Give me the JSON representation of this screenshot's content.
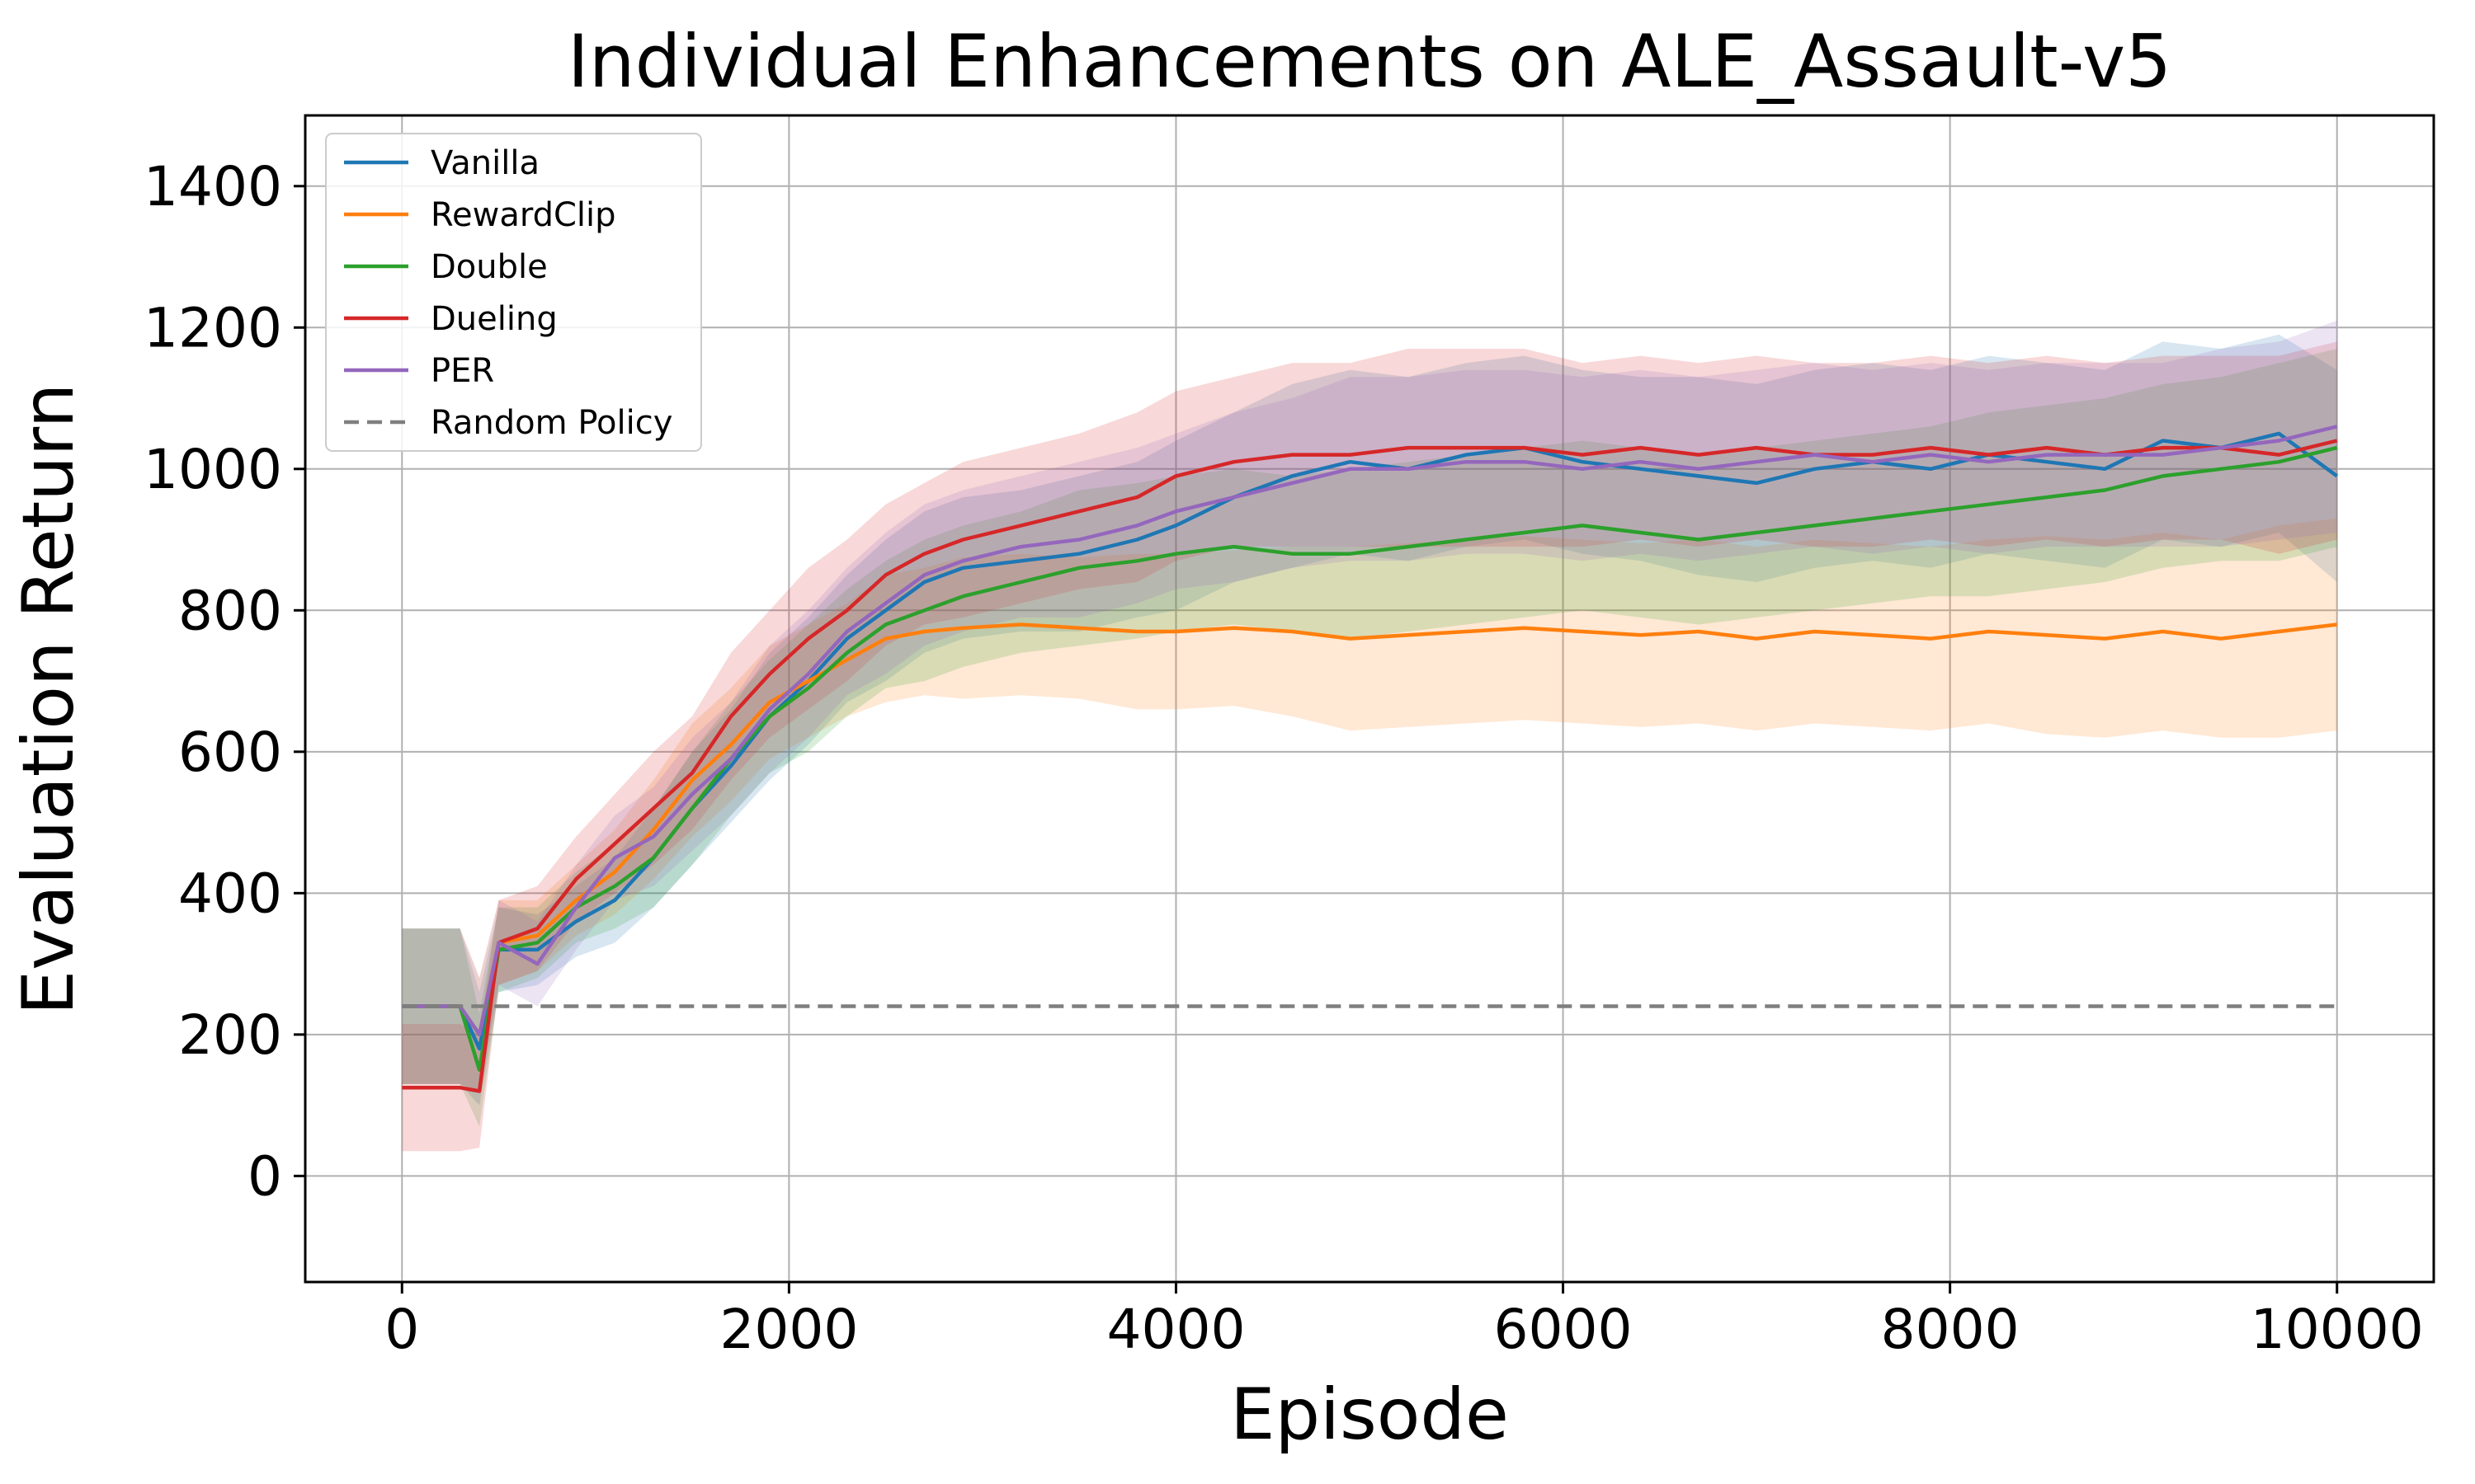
{
  "chart_data": {
    "type": "line",
    "title": "Individual Enhancements on ALE_Assault-v5",
    "xlabel": "Episode",
    "ylabel": "Evaluation Return",
    "xlim": [
      -500,
      10500
    ],
    "ylim": [
      -150,
      1500
    ],
    "xticks": [
      0,
      2000,
      4000,
      6000,
      8000,
      10000
    ],
    "yticks": [
      0,
      200,
      400,
      600,
      800,
      1000,
      1200,
      1400
    ],
    "x_tick_labels": [
      "0",
      "2000",
      "4000",
      "6000",
      "8000",
      "10000"
    ],
    "y_tick_labels": [
      "0",
      "200",
      "400",
      "600",
      "800",
      "1000",
      "1200",
      "1400"
    ],
    "grid": true,
    "legend_position": "top-left",
    "shaded_band": "variability across runs",
    "x": [
      0,
      300,
      400,
      500,
      700,
      900,
      1100,
      1300,
      1500,
      1700,
      1900,
      2100,
      2300,
      2500,
      2700,
      2900,
      3200,
      3500,
      3800,
      4000,
      4300,
      4600,
      4900,
      5200,
      5500,
      5800,
      6100,
      6400,
      6700,
      7000,
      7300,
      7600,
      7900,
      8200,
      8500,
      8800,
      9100,
      9400,
      9700,
      10000
    ],
    "series": [
      {
        "name": "Vanilla",
        "color": "#1f77b4",
        "values": [
          240,
          240,
          180,
          320,
          320,
          360,
          390,
          450,
          520,
          580,
          650,
          700,
          760,
          800,
          840,
          860,
          870,
          880,
          900,
          920,
          960,
          990,
          1010,
          1000,
          1020,
          1030,
          1010,
          1000,
          990,
          980,
          1000,
          1010,
          1000,
          1020,
          1010,
          1000,
          1040,
          1030,
          1050,
          990
        ],
        "spread": [
          110,
          110,
          80,
          60,
          50,
          50,
          60,
          70,
          80,
          80,
          90,
          90,
          90,
          100,
          100,
          100,
          100,
          110,
          110,
          120,
          120,
          130,
          130,
          130,
          130,
          130,
          130,
          130,
          140,
          140,
          140,
          140,
          140,
          140,
          140,
          140,
          140,
          140,
          140,
          150
        ]
      },
      {
        "name": "RewardClip",
        "color": "#ff7f0e",
        "values": [
          240,
          240,
          200,
          330,
          340,
          390,
          430,
          490,
          560,
          610,
          670,
          700,
          730,
          760,
          770,
          775,
          780,
          775,
          770,
          770,
          775,
          770,
          760,
          765,
          770,
          775,
          770,
          765,
          770,
          760,
          770,
          765,
          760,
          770,
          765,
          760,
          770,
          760,
          770,
          780
        ],
        "spread": [
          110,
          110,
          80,
          60,
          50,
          50,
          60,
          70,
          80,
          80,
          80,
          80,
          80,
          90,
          90,
          100,
          100,
          100,
          110,
          110,
          110,
          120,
          130,
          130,
          130,
          130,
          130,
          130,
          130,
          130,
          130,
          130,
          130,
          130,
          140,
          140,
          140,
          140,
          150,
          150
        ]
      },
      {
        "name": "Double",
        "color": "#2ca02c",
        "values": [
          240,
          240,
          150,
          320,
          330,
          380,
          410,
          450,
          520,
          590,
          650,
          690,
          740,
          780,
          800,
          820,
          840,
          860,
          870,
          880,
          890,
          880,
          880,
          890,
          900,
          910,
          920,
          910,
          900,
          910,
          920,
          930,
          940,
          950,
          960,
          970,
          990,
          1000,
          1010,
          1030
        ],
        "spread": [
          110,
          110,
          80,
          60,
          50,
          50,
          60,
          70,
          80,
          80,
          80,
          90,
          90,
          90,
          100,
          100,
          100,
          110,
          110,
          110,
          110,
          110,
          120,
          120,
          120,
          120,
          120,
          120,
          120,
          120,
          120,
          120,
          120,
          130,
          130,
          130,
          130,
          130,
          140,
          140
        ]
      },
      {
        "name": "Dueling",
        "color": "#d62728",
        "values": [
          125,
          125,
          120,
          330,
          350,
          420,
          470,
          520,
          570,
          650,
          710,
          760,
          800,
          850,
          880,
          900,
          920,
          940,
          960,
          990,
          1010,
          1020,
          1020,
          1030,
          1030,
          1030,
          1020,
          1030,
          1020,
          1030,
          1020,
          1020,
          1030,
          1020,
          1030,
          1020,
          1030,
          1030,
          1020,
          1040
        ],
        "spread": [
          90,
          90,
          80,
          60,
          60,
          60,
          70,
          80,
          80,
          90,
          90,
          100,
          100,
          100,
          100,
          110,
          110,
          110,
          120,
          120,
          120,
          130,
          130,
          140,
          140,
          140,
          130,
          130,
          130,
          130,
          130,
          130,
          130,
          130,
          130,
          130,
          130,
          130,
          140,
          140
        ]
      },
      {
        "name": "PER",
        "color": "#9467bd",
        "values": [
          240,
          240,
          200,
          330,
          300,
          380,
          450,
          480,
          540,
          590,
          660,
          710,
          770,
          810,
          850,
          870,
          890,
          900,
          920,
          940,
          960,
          980,
          1000,
          1000,
          1010,
          1010,
          1000,
          1010,
          1000,
          1010,
          1020,
          1010,
          1020,
          1010,
          1020,
          1020,
          1020,
          1030,
          1040,
          1060
        ],
        "spread": [
          110,
          110,
          80,
          60,
          60,
          60,
          60,
          70,
          80,
          80,
          90,
          90,
          90,
          100,
          100,
          100,
          100,
          110,
          110,
          110,
          120,
          120,
          130,
          130,
          130,
          130,
          130,
          130,
          130,
          130,
          130,
          130,
          130,
          130,
          130,
          130,
          130,
          140,
          140,
          150
        ]
      },
      {
        "name": "Random Policy",
        "color": "#7f7f7f",
        "dashed": true,
        "x": [
          0,
          10000
        ],
        "values": [
          240,
          240
        ]
      }
    ]
  }
}
